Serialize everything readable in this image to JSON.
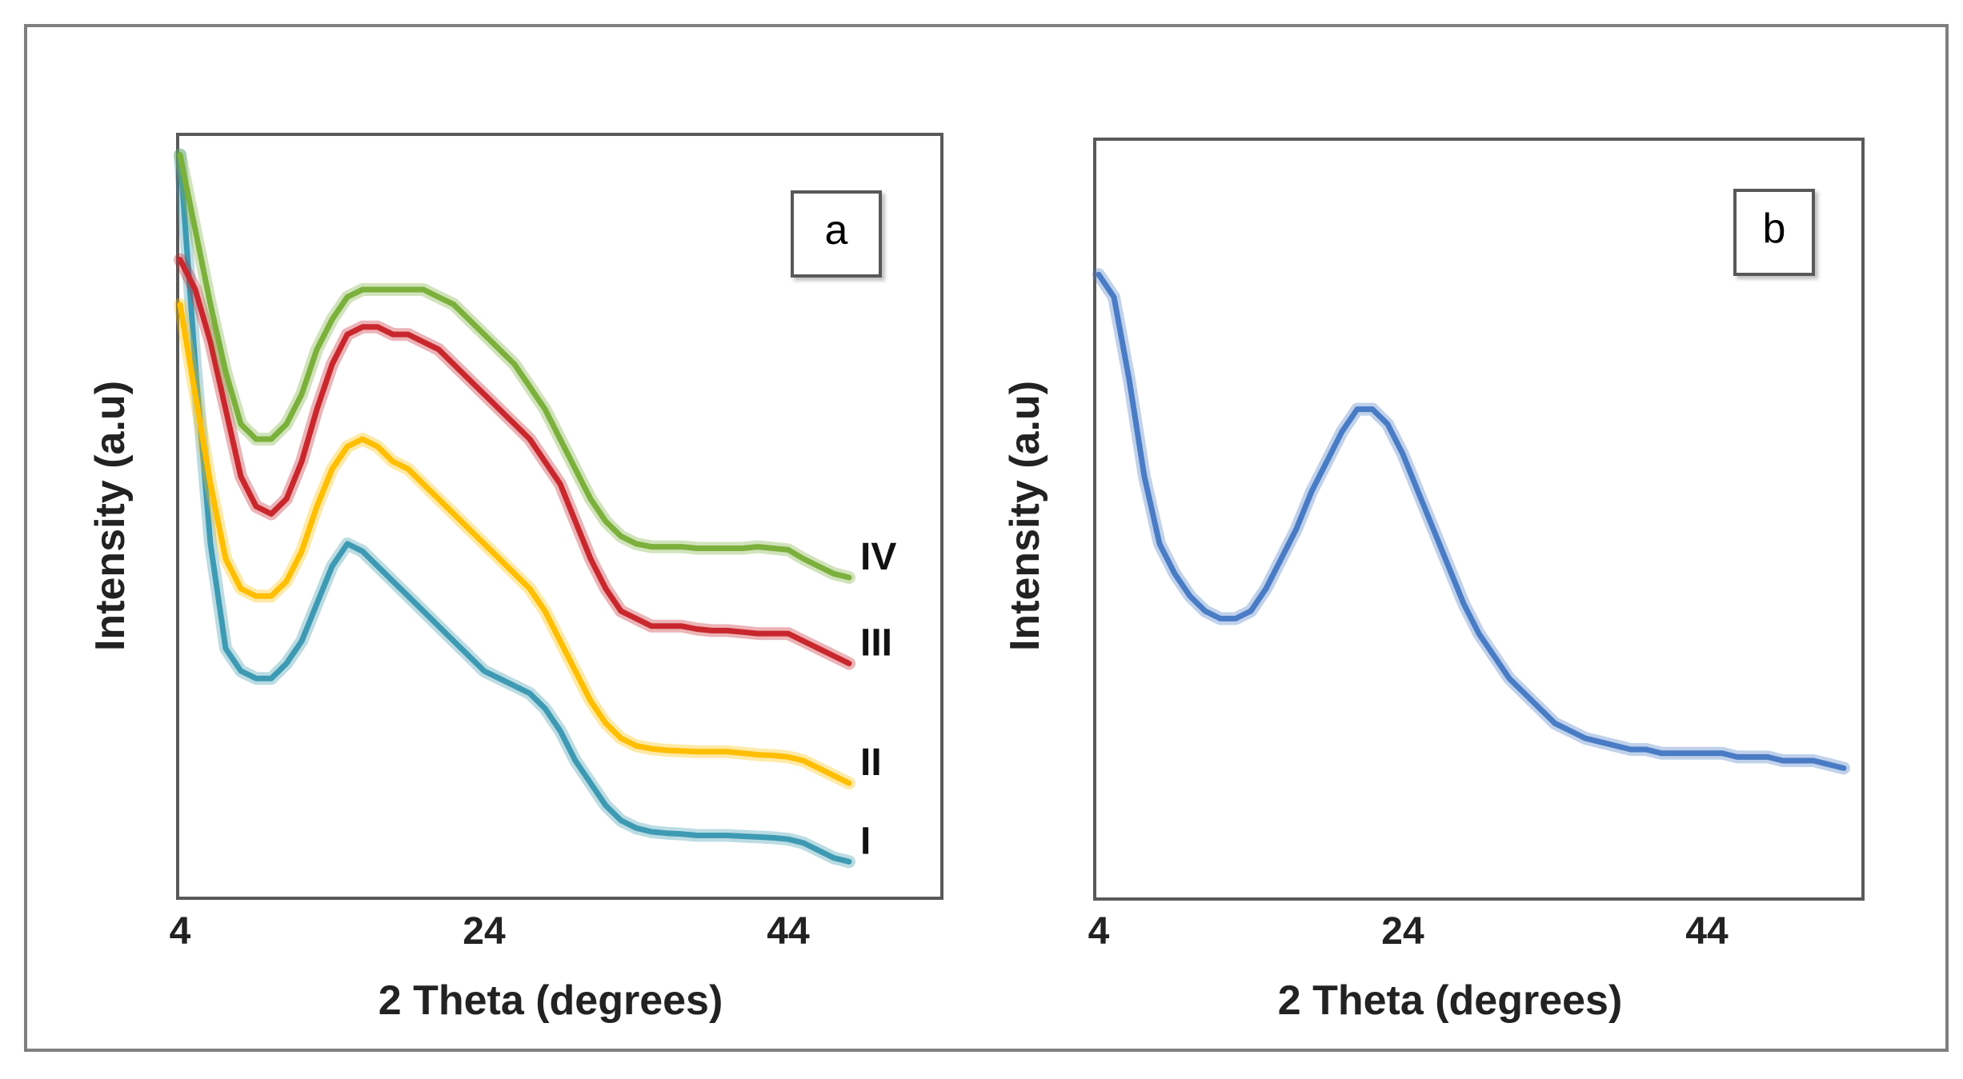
{
  "chart_data": [
    {
      "id": "a",
      "type": "line",
      "panel_label": "a",
      "title": "",
      "xlabel": "2 Theta (degrees)",
      "ylabel": "Intensity (a.u)",
      "xlim": [
        4,
        54
      ],
      "ylim": [
        0,
        100
      ],
      "xticks": [
        4,
        24,
        44
      ],
      "xtick_labels": [
        "4",
        "24",
        "44"
      ],
      "grid": false,
      "legend": "inline labels at right end of each curve",
      "x": [
        4,
        5,
        6,
        7,
        8,
        9,
        10,
        11,
        12,
        13,
        14,
        15,
        16,
        17,
        18,
        19,
        20,
        21,
        22,
        23,
        24,
        25,
        26,
        27,
        28,
        29,
        30,
        31,
        32,
        33,
        34,
        35,
        36,
        37,
        38,
        39,
        40,
        41,
        42,
        43,
        44,
        45,
        46,
        47,
        48
      ],
      "series": [
        {
          "name": "I",
          "color": "#3E9AB2",
          "values": [
            98,
            70,
            46,
            32,
            29,
            28,
            28,
            30,
            33,
            38,
            43,
            46,
            45,
            43,
            41,
            39,
            37,
            35,
            33,
            31,
            29,
            28,
            27,
            26,
            24,
            21,
            17,
            14,
            11,
            9,
            8,
            7.5,
            7.3,
            7.2,
            7,
            7,
            7,
            6.9,
            6.8,
            6.7,
            6.5,
            6,
            5,
            4,
            3.5
          ]
        },
        {
          "name": "II",
          "color": "#FFBF00",
          "values": [
            78,
            66,
            54,
            44,
            40,
            39,
            39,
            41,
            45,
            51,
            56,
            59,
            60,
            59,
            57,
            56,
            54,
            52,
            50,
            48,
            46,
            44,
            42,
            40,
            37,
            33,
            29,
            25,
            22,
            20,
            19,
            18.6,
            18.4,
            18.3,
            18.2,
            18.2,
            18.2,
            18,
            17.8,
            17.7,
            17.5,
            17,
            16,
            15,
            14
          ]
        },
        {
          "name": "III",
          "color": "#C8282D",
          "values": [
            84,
            80,
            73,
            64,
            55,
            51,
            50,
            52,
            57,
            64,
            70,
            74,
            75,
            75,
            74,
            74,
            73,
            72,
            70,
            68,
            66,
            64,
            62,
            60,
            57,
            54,
            49,
            44,
            40,
            37,
            36,
            35,
            35,
            35,
            34.6,
            34.4,
            34.4,
            34.2,
            34,
            34,
            34,
            33,
            32,
            31,
            30
          ]
        },
        {
          "name": "IV",
          "color": "#7BB03C",
          "values": [
            98,
            88,
            78,
            69,
            62,
            60,
            60,
            62,
            66,
            72,
            76,
            79,
            80,
            80,
            80,
            80,
            80,
            79,
            78,
            76,
            74,
            72,
            70,
            67,
            64,
            60,
            56,
            52,
            49,
            47,
            46,
            45.6,
            45.6,
            45.6,
            45.4,
            45.4,
            45.4,
            45.4,
            45.6,
            45.4,
            45.2,
            44,
            43,
            42,
            41.5
          ]
        }
      ]
    },
    {
      "id": "b",
      "type": "line",
      "panel_label": "b",
      "title": "",
      "xlabel": "2 Theta (degrees)",
      "ylabel": "Intensity (a.u)",
      "xlim": [
        4,
        54
      ],
      "ylim": [
        0,
        100
      ],
      "xticks": [
        4,
        24,
        44
      ],
      "xtick_labels": [
        "4",
        "24",
        "44"
      ],
      "grid": false,
      "legend": "none",
      "x": [
        4,
        5,
        6,
        7,
        8,
        9,
        10,
        11,
        12,
        13,
        14,
        15,
        16,
        17,
        18,
        19,
        20,
        21,
        22,
        23,
        24,
        25,
        26,
        27,
        28,
        29,
        30,
        31,
        32,
        33,
        34,
        35,
        36,
        37,
        38,
        39,
        40,
        41,
        42,
        43,
        44,
        45,
        46,
        47,
        48,
        49,
        50,
        51,
        52,
        53
      ],
      "series": [
        {
          "name": "",
          "color": "#4A7CC5",
          "values": [
            82,
            79,
            68,
            55,
            46,
            42,
            39,
            37,
            36,
            36,
            37,
            40,
            44,
            48,
            53,
            57,
            61,
            64,
            64,
            62,
            58,
            53,
            48,
            43,
            38,
            34,
            31,
            28,
            26,
            24,
            22,
            21,
            20,
            19.5,
            19,
            18.5,
            18.5,
            18,
            18,
            18,
            18,
            18,
            17.5,
            17.5,
            17.5,
            17,
            17,
            17,
            16.5,
            16
          ]
        }
      ]
    }
  ]
}
